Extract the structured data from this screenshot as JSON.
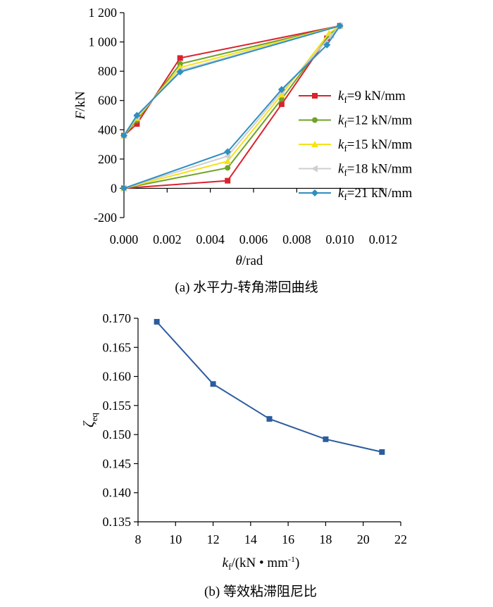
{
  "colors": {
    "k9": "#d9232e",
    "k12": "#6fa32a",
    "k15": "#f5e21a",
    "k18": "#cfcfcf",
    "k21": "#2f8fc0",
    "curve_b": "#2b5c9e",
    "axis": "#000000"
  },
  "chart_data": [
    {
      "type": "line",
      "caption": "(a) 水平力-转角滞回曲线",
      "xlabel": {
        "var": "θ",
        "unit": "/rad"
      },
      "ylabel": {
        "var": "F",
        "unit": "/kN"
      },
      "xlim": [
        0,
        0.012
      ],
      "ylim": [
        -200,
        1200
      ],
      "xticks": [
        0,
        0.002,
        0.004,
        0.006,
        0.008,
        0.01,
        0.012
      ],
      "xtick_labels": [
        "0.000",
        "0.002",
        "0.004",
        "0.006",
        "0.008",
        "0.010",
        "0.012"
      ],
      "yticks": [
        -200,
        0,
        200,
        400,
        600,
        800,
        1000,
        1200
      ],
      "ytick_labels": [
        "-200",
        "0",
        "200",
        "400",
        "600",
        "800",
        "1 000",
        "1 200"
      ],
      "legend_position": "right",
      "grid": false,
      "series": [
        {
          "key": "k9",
          "legend_var": "k",
          "legend_sub": "f",
          "legend_text": "=9 kN/mm",
          "marker": "square",
          "points": [
            [
              0,
              0
            ],
            [
              0.0048,
              52
            ],
            [
              0.0073,
              575
            ],
            [
              0.0094,
              1025
            ],
            [
              0.01,
              1110
            ],
            [
              0.0026,
              890
            ],
            [
              0.0006,
              440
            ],
            [
              0,
              360
            ]
          ]
        },
        {
          "key": "k12",
          "legend_var": "k",
          "legend_sub": "f",
          "legend_text": "=12 kN/mm",
          "marker": "circle",
          "points": [
            [
              0,
              0
            ],
            [
              0.0048,
              140
            ],
            [
              0.0073,
              610
            ],
            [
              0.0095,
              1045
            ],
            [
              0.01,
              1110
            ],
            [
              0.0026,
              850
            ],
            [
              0.0006,
              465
            ],
            [
              0,
              360
            ]
          ]
        },
        {
          "key": "k15",
          "legend_var": "k",
          "legend_sub": "f",
          "legend_text": "=15 kN/mm",
          "marker": "triangle-up",
          "points": [
            [
              0,
              0
            ],
            [
              0.0048,
              185
            ],
            [
              0.0073,
              640
            ],
            [
              0.0095,
              1060
            ],
            [
              0.01,
              1110
            ],
            [
              0.0026,
              825
            ],
            [
              0.0006,
              480
            ],
            [
              0,
              360
            ]
          ]
        },
        {
          "key": "k18",
          "legend_var": "k",
          "legend_sub": "f",
          "legend_text": "=18 kN/mm",
          "marker": "triangle-left",
          "points": [
            [
              0,
              0
            ],
            [
              0.0048,
              220
            ],
            [
              0.0073,
              660
            ],
            [
              0.0096,
              1045
            ],
            [
              0.01,
              1110
            ],
            [
              0.0026,
              805
            ],
            [
              0.0006,
              490
            ],
            [
              0,
              360
            ]
          ]
        },
        {
          "key": "k21",
          "legend_var": "k",
          "legend_sub": "f",
          "legend_text": "=21 kN/mm",
          "marker": "diamond",
          "points": [
            [
              0,
              0
            ],
            [
              0.0048,
              250
            ],
            [
              0.0073,
              675
            ],
            [
              0.0094,
              980
            ],
            [
              0.01,
              1110
            ],
            [
              0.0026,
              795
            ],
            [
              0.0006,
              498
            ],
            [
              0,
              360
            ]
          ]
        }
      ]
    },
    {
      "type": "line",
      "caption": "(b) 等效粘滞阻尼比",
      "xlabel": {
        "var": "k",
        "sub": "f",
        "unit_pre": "/(kN • mm",
        "unit_sup": "-1",
        "unit_post": ")"
      },
      "ylabel": {
        "var": "ζ",
        "sub": "eq"
      },
      "xlim": [
        8,
        22
      ],
      "ylim": [
        0.135,
        0.17
      ],
      "xticks": [
        8,
        10,
        12,
        14,
        16,
        18,
        20,
        22
      ],
      "xtick_labels": [
        "8",
        "10",
        "12",
        "14",
        "16",
        "18",
        "20",
        "22"
      ],
      "yticks": [
        0.135,
        0.14,
        0.145,
        0.15,
        0.155,
        0.16,
        0.165,
        0.17
      ],
      "ytick_labels": [
        "0.135",
        "0.140",
        "0.145",
        "0.150",
        "0.155",
        "0.160",
        "0.165",
        "0.170"
      ],
      "grid": false,
      "series": [
        {
          "key": "curve_b",
          "marker": "square",
          "x": [
            9,
            12,
            15,
            18,
            21
          ],
          "y": [
            0.1694,
            0.1587,
            0.1527,
            0.1492,
            0.147
          ]
        }
      ]
    }
  ]
}
